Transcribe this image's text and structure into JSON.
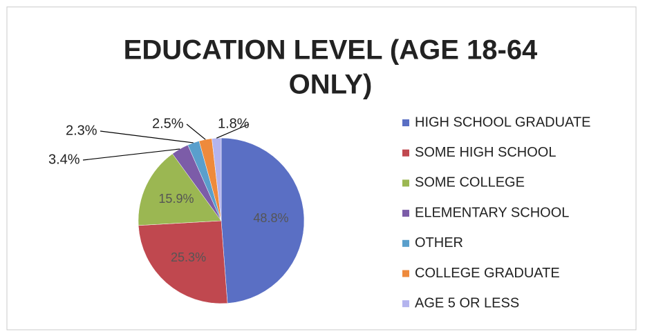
{
  "chart_data": {
    "type": "pie",
    "title": "EDUCATION LEVEL (AGE 18-64 ONLY)",
    "categories": [
      "HIGH SCHOOL GRADUATE",
      "SOME HIGH SCHOOL",
      "SOME COLLEGE",
      "ELEMENTARY SCHOOL",
      "OTHER",
      "COLLEGE GRADUATE",
      "AGE 5 OR LESS"
    ],
    "values": [
      48.8,
      25.3,
      15.9,
      3.4,
      2.3,
      2.5,
      1.8
    ],
    "value_labels": [
      "48.8%",
      "25.3%",
      "15.9%",
      "3.4%",
      "2.3%",
      "2.5%",
      "1.8%"
    ],
    "colors": [
      "#5a6fc4",
      "#c0484f",
      "#9bb752",
      "#7c5ca8",
      "#5a9fcc",
      "#ee8a3c",
      "#b4b4ee"
    ],
    "legend": "right"
  }
}
